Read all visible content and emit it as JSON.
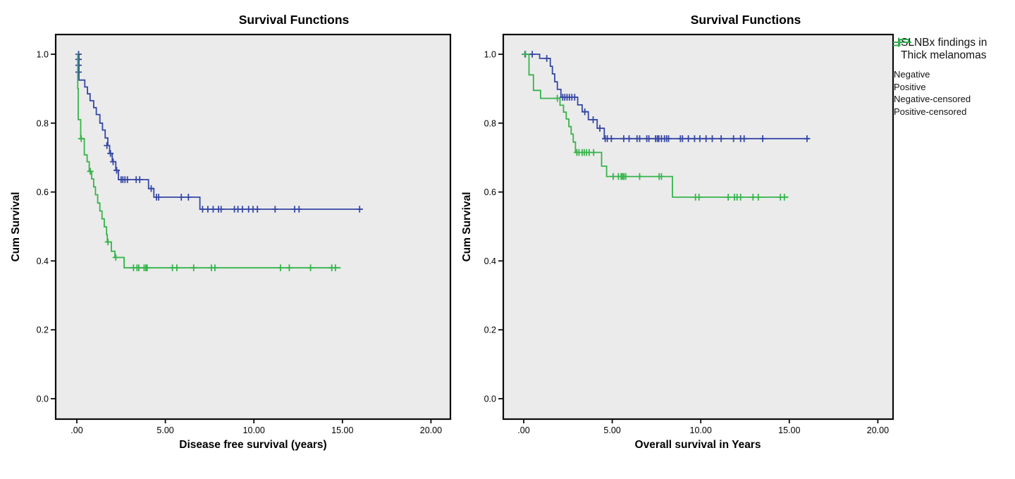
{
  "figure": {
    "background": "#ffffff",
    "plot_background": "#ebebeb",
    "border_color": "#0a0a0a",
    "text_color": "#000000"
  },
  "colors": {
    "negative": "#3547a5",
    "positive": "#35b44a"
  },
  "legend": {
    "title_line1": "SLNBx findings in",
    "title_line2": "Thick melanomas",
    "items": [
      {
        "label": "Negative",
        "color": "negative",
        "glyph": "step-line"
      },
      {
        "label": "Positive",
        "color": "positive",
        "glyph": "step-line"
      },
      {
        "label": "Negative-censored",
        "color": "negative",
        "glyph": "plus"
      },
      {
        "label": "Positive-censored",
        "color": "positive",
        "glyph": "plus"
      }
    ]
  },
  "chart_data": [
    {
      "type": "line",
      "subtype": "kaplan-meier-step",
      "title": "Survival Functions",
      "xlabel": "Disease free survival (years)",
      "ylabel": "Cum Survival",
      "x_ticks": [
        ".00",
        "5.00",
        "10.00",
        "15.00",
        "20.00"
      ],
      "x_tick_values": [
        0,
        5,
        10,
        15,
        20
      ],
      "y_ticks": [
        "0.0",
        "0.2",
        "0.4",
        "0.6",
        "0.8",
        "1.0"
      ],
      "y_tick_values": [
        0,
        0.2,
        0.4,
        0.6,
        0.8,
        1.0
      ],
      "xlim": [
        -1.2,
        21.1
      ],
      "ylim": [
        -0.06,
        1.06
      ],
      "grid": false,
      "series": [
        {
          "name": "Negative",
          "color": "negative",
          "points": [
            [
              0,
              1.0
            ],
            [
              0.12,
              0.925
            ],
            [
              0.45,
              0.905
            ],
            [
              0.6,
              0.885
            ],
            [
              0.75,
              0.865
            ],
            [
              0.95,
              0.845
            ],
            [
              1.1,
              0.825
            ],
            [
              1.3,
              0.8
            ],
            [
              1.45,
              0.78
            ],
            [
              1.6,
              0.757
            ],
            [
              1.75,
              0.735
            ],
            [
              1.85,
              0.712
            ],
            [
              2.0,
              0.688
            ],
            [
              2.2,
              0.663
            ],
            [
              2.35,
              0.636
            ],
            [
              4.05,
              0.61
            ],
            [
              4.35,
              0.585
            ],
            [
              6.95,
              0.55
            ]
          ],
          "censored": [
            [
              0.1,
              1.0
            ],
            [
              0.1,
              0.985
            ],
            [
              0.1,
              0.968
            ],
            [
              0.1,
              0.948
            ],
            [
              1.7,
              0.735
            ],
            [
              1.9,
              0.712
            ],
            [
              2.05,
              0.688
            ],
            [
              2.25,
              0.663
            ],
            [
              2.5,
              0.636
            ],
            [
              2.6,
              0.636
            ],
            [
              2.72,
              0.636
            ],
            [
              2.86,
              0.636
            ],
            [
              3.35,
              0.636
            ],
            [
              3.55,
              0.636
            ],
            [
              4.2,
              0.61
            ],
            [
              4.5,
              0.585
            ],
            [
              4.62,
              0.585
            ],
            [
              5.9,
              0.585
            ],
            [
              6.3,
              0.585
            ],
            [
              7.1,
              0.55
            ],
            [
              7.4,
              0.55
            ],
            [
              7.7,
              0.55
            ],
            [
              8.0,
              0.55
            ],
            [
              8.15,
              0.55
            ],
            [
              8.9,
              0.55
            ],
            [
              9.1,
              0.55
            ],
            [
              9.35,
              0.55
            ],
            [
              9.7,
              0.55
            ],
            [
              9.95,
              0.55
            ],
            [
              10.2,
              0.55
            ],
            [
              11.2,
              0.55
            ],
            [
              12.3,
              0.55
            ],
            [
              12.55,
              0.55
            ],
            [
              15.97,
              0.55
            ]
          ],
          "end": 16.15
        },
        {
          "name": "Positive",
          "color": "positive",
          "points": [
            [
              0,
              1.0
            ],
            [
              0.05,
              0.9
            ],
            [
              0.08,
              0.81
            ],
            [
              0.22,
              0.755
            ],
            [
              0.42,
              0.708
            ],
            [
              0.58,
              0.688
            ],
            [
              0.7,
              0.66
            ],
            [
              0.84,
              0.638
            ],
            [
              0.95,
              0.615
            ],
            [
              1.05,
              0.592
            ],
            [
              1.18,
              0.568
            ],
            [
              1.3,
              0.545
            ],
            [
              1.42,
              0.522
            ],
            [
              1.55,
              0.499
            ],
            [
              1.68,
              0.476
            ],
            [
              1.72,
              0.455
            ],
            [
              1.95,
              0.428
            ],
            [
              2.15,
              0.41
            ],
            [
              2.67,
              0.38
            ]
          ],
          "censored": [
            [
              0.25,
              0.755
            ],
            [
              0.76,
              0.66
            ],
            [
              1.76,
              0.455
            ],
            [
              2.2,
              0.41
            ],
            [
              3.2,
              0.38
            ],
            [
              3.4,
              0.38
            ],
            [
              3.5,
              0.38
            ],
            [
              3.8,
              0.38
            ],
            [
              3.9,
              0.38
            ],
            [
              3.97,
              0.38
            ],
            [
              5.4,
              0.38
            ],
            [
              5.65,
              0.38
            ],
            [
              6.6,
              0.38
            ],
            [
              7.6,
              0.38
            ],
            [
              7.8,
              0.38
            ],
            [
              11.5,
              0.38
            ],
            [
              12.0,
              0.38
            ],
            [
              13.2,
              0.38
            ],
            [
              14.4,
              0.38
            ],
            [
              14.6,
              0.38
            ]
          ],
          "end": 14.9
        }
      ]
    },
    {
      "type": "line",
      "subtype": "kaplan-meier-step",
      "title": "Survival Functions",
      "xlabel": "Overall survival in Years",
      "ylabel": "Cum Survival",
      "x_ticks": [
        ".00",
        "5.00",
        "10.00",
        "15.00",
        "20.00"
      ],
      "x_tick_values": [
        0,
        5,
        10,
        15,
        20
      ],
      "y_ticks": [
        "0.0",
        "0.2",
        "0.4",
        "0.6",
        "0.8",
        "1.0"
      ],
      "y_tick_values": [
        0,
        0.2,
        0.4,
        0.6,
        0.8,
        1.0
      ],
      "xlim": [
        -1.2,
        21.1
      ],
      "ylim": [
        -0.06,
        1.06
      ],
      "grid": false,
      "legend_position": "right",
      "series": [
        {
          "name": "Negative",
          "color": "negative",
          "points": [
            [
              0,
              1.0
            ],
            [
              0.9,
              0.988
            ],
            [
              1.5,
              0.965
            ],
            [
              1.62,
              0.943
            ],
            [
              1.75,
              0.92
            ],
            [
              1.9,
              0.898
            ],
            [
              2.1,
              0.875
            ],
            [
              3.05,
              0.853
            ],
            [
              3.3,
              0.833
            ],
            [
              3.65,
              0.81
            ],
            [
              4.15,
              0.785
            ],
            [
              4.55,
              0.755
            ]
          ],
          "censored": [
            [
              0.07,
              1.0
            ],
            [
              0.48,
              1.0
            ],
            [
              1.3,
              0.988
            ],
            [
              2.2,
              0.875
            ],
            [
              2.32,
              0.875
            ],
            [
              2.45,
              0.875
            ],
            [
              2.58,
              0.875
            ],
            [
              2.72,
              0.875
            ],
            [
              2.88,
              0.875
            ],
            [
              3.45,
              0.833
            ],
            [
              3.92,
              0.81
            ],
            [
              4.3,
              0.785
            ],
            [
              4.6,
              0.755
            ],
            [
              4.72,
              0.755
            ],
            [
              4.95,
              0.755
            ],
            [
              5.65,
              0.755
            ],
            [
              5.95,
              0.755
            ],
            [
              6.4,
              0.755
            ],
            [
              6.55,
              0.755
            ],
            [
              6.95,
              0.755
            ],
            [
              7.07,
              0.755
            ],
            [
              7.45,
              0.755
            ],
            [
              7.55,
              0.755
            ],
            [
              7.63,
              0.755
            ],
            [
              7.78,
              0.755
            ],
            [
              7.95,
              0.755
            ],
            [
              8.07,
              0.755
            ],
            [
              8.18,
              0.755
            ],
            [
              8.85,
              0.755
            ],
            [
              8.97,
              0.755
            ],
            [
              9.3,
              0.755
            ],
            [
              9.65,
              0.755
            ],
            [
              9.95,
              0.755
            ],
            [
              10.3,
              0.755
            ],
            [
              10.65,
              0.755
            ],
            [
              11.15,
              0.755
            ],
            [
              11.85,
              0.755
            ],
            [
              12.25,
              0.755
            ],
            [
              12.45,
              0.755
            ],
            [
              13.5,
              0.755
            ],
            [
              16.0,
              0.755
            ]
          ],
          "end": 16.15
        },
        {
          "name": "Positive",
          "color": "positive",
          "points": [
            [
              0,
              1.0
            ],
            [
              0.3,
              0.94
            ],
            [
              0.55,
              0.895
            ],
            [
              0.95,
              0.872
            ],
            [
              2.05,
              0.852
            ],
            [
              2.25,
              0.832
            ],
            [
              2.4,
              0.812
            ],
            [
              2.55,
              0.79
            ],
            [
              2.68,
              0.768
            ],
            [
              2.8,
              0.745
            ],
            [
              2.92,
              0.715
            ],
            [
              4.4,
              0.675
            ],
            [
              4.68,
              0.645
            ],
            [
              8.4,
              0.585
            ]
          ],
          "censored": [
            [
              0.1,
              1.0
            ],
            [
              1.9,
              0.872
            ],
            [
              3.0,
              0.715
            ],
            [
              3.12,
              0.715
            ],
            [
              3.3,
              0.715
            ],
            [
              3.42,
              0.715
            ],
            [
              3.55,
              0.715
            ],
            [
              3.7,
              0.715
            ],
            [
              3.95,
              0.715
            ],
            [
              5.05,
              0.645
            ],
            [
              5.35,
              0.645
            ],
            [
              5.5,
              0.645
            ],
            [
              5.58,
              0.645
            ],
            [
              5.66,
              0.645
            ],
            [
              5.76,
              0.645
            ],
            [
              6.55,
              0.645
            ],
            [
              7.65,
              0.645
            ],
            [
              7.78,
              0.645
            ],
            [
              9.7,
              0.585
            ],
            [
              9.9,
              0.585
            ],
            [
              11.55,
              0.585
            ],
            [
              11.9,
              0.585
            ],
            [
              12.05,
              0.585
            ],
            [
              12.25,
              0.585
            ],
            [
              12.95,
              0.585
            ],
            [
              13.25,
              0.585
            ],
            [
              14.5,
              0.585
            ],
            [
              14.72,
              0.585
            ]
          ],
          "end": 14.95
        }
      ]
    }
  ]
}
